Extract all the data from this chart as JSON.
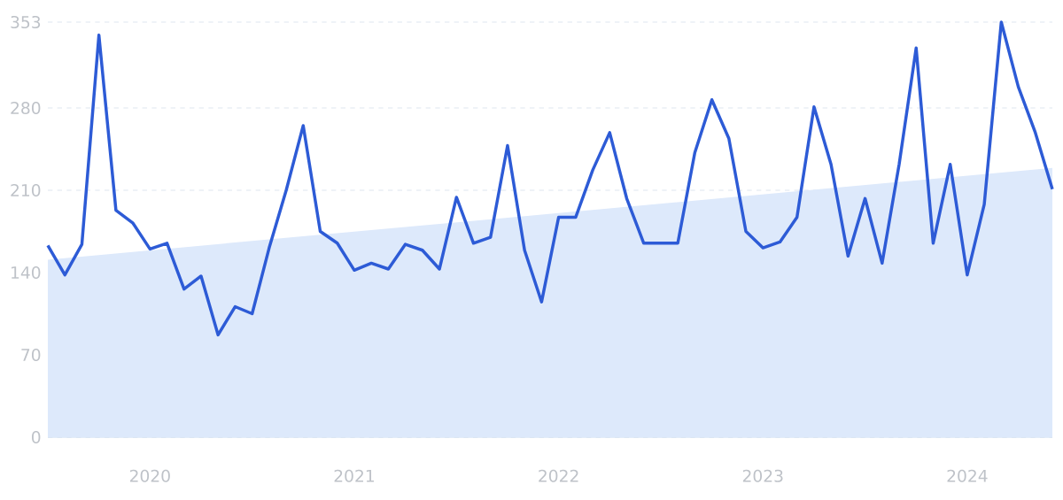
{
  "chart_data": {
    "type": "line",
    "x": [
      "2019-07",
      "2019-08",
      "2019-09",
      "2019-10",
      "2019-11",
      "2019-12",
      "2020-01",
      "2020-02",
      "2020-03",
      "2020-04",
      "2020-05",
      "2020-06",
      "2020-07",
      "2020-08",
      "2020-09",
      "2020-10",
      "2020-11",
      "2020-12",
      "2021-01",
      "2021-02",
      "2021-03",
      "2021-04",
      "2021-05",
      "2021-06",
      "2021-07",
      "2021-08",
      "2021-09",
      "2021-10",
      "2021-11",
      "2021-12",
      "2022-01",
      "2022-02",
      "2022-03",
      "2022-04",
      "2022-05",
      "2022-06",
      "2022-07",
      "2022-08",
      "2022-09",
      "2022-10",
      "2022-11",
      "2022-12",
      "2023-01",
      "2023-02",
      "2023-03",
      "2023-04",
      "2023-05",
      "2023-06",
      "2023-07",
      "2023-08",
      "2023-09",
      "2023-10",
      "2023-11",
      "2023-12",
      "2024-01",
      "2024-02",
      "2024-03",
      "2024-04",
      "2024-05",
      "2024-06"
    ],
    "series": [
      {
        "type": "area",
        "color": "#dde9fb",
        "x": [
          "2019-07",
          "2024-06"
        ],
        "values": [
          151,
          229
        ]
      },
      {
        "color": "#2d5bd6",
        "values": [
          163,
          138,
          164,
          342,
          193,
          182,
          160,
          165,
          126,
          137,
          87,
          111,
          105,
          161,
          210,
          265,
          175,
          165,
          142,
          148,
          143,
          164,
          159,
          143,
          204,
          165,
          170,
          248,
          159,
          115,
          187,
          187,
          227,
          259,
          203,
          165,
          165,
          165,
          242,
          287,
          254,
          175,
          161,
          166,
          187,
          281,
          232,
          154,
          203,
          148,
          232,
          331,
          165,
          232,
          138,
          198,
          353,
          298,
          259,
          211
        ]
      }
    ],
    "xlim": [
      "2019-07",
      "2024-06"
    ],
    "xticks": [
      "2020",
      "2021",
      "2022",
      "2023",
      "2024"
    ],
    "ylim": [
      0,
      353
    ],
    "yticks": [
      0,
      70,
      140,
      210,
      280,
      353
    ],
    "grid": "y"
  }
}
